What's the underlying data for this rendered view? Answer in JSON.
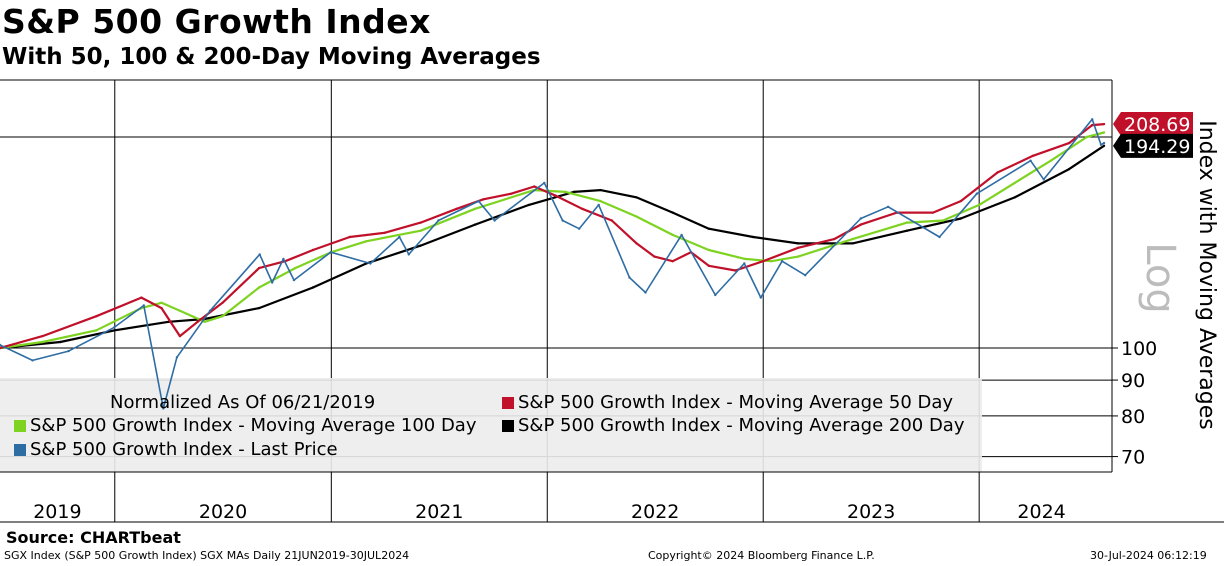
{
  "header": {
    "title": "S&P 500 Growth Index",
    "subtitle": "With 50, 100 & 200-Day Moving Averages"
  },
  "footer": {
    "source": "Source: CHARTbeat",
    "ticker_info": "SGX Index (S&P 500 Growth Index) SGX MAs  Daily 21JUN2019-30JUL2024",
    "copyright": "Copyright© 2024 Bloomberg Finance L.P.",
    "timestamp": "30-Jul-2024 06:12:19"
  },
  "colors": {
    "last_price": "#2e6da4",
    "ma50": "#c0102a",
    "ma100": "#7ed321",
    "ma200": "#000000",
    "legend_bg": "#ececec"
  },
  "chart_data": {
    "type": "line",
    "y_axis_label": "Index with Moving Averages",
    "y_scale": "Log",
    "y_ticks": [
      70,
      80,
      90,
      100
    ],
    "ylim": [
      66,
      215
    ],
    "x_ticks": [
      "2019",
      "2020",
      "2021",
      "2022",
      "2023",
      "2024"
    ],
    "x_range": [
      "2019-06-21",
      "2024-07-30"
    ],
    "grid": true,
    "legend_header": "Normalized As Of 06/21/2019",
    "last_value_labels": [
      {
        "series": "ma50",
        "value": "208.69"
      },
      {
        "series": "ma200",
        "value": "194.29"
      }
    ],
    "series": [
      {
        "name": "S&P 500 Growth Index - Moving Average 50 Day",
        "key": "ma50",
        "points": [
          [
            "2019-06-21",
            100
          ],
          [
            "2019-09-01",
            104
          ],
          [
            "2019-12-01",
            111
          ],
          [
            "2020-02-15",
            118
          ],
          [
            "2020-03-20",
            114
          ],
          [
            "2020-04-20",
            104
          ],
          [
            "2020-05-20",
            109
          ],
          [
            "2020-07-01",
            116
          ],
          [
            "2020-09-01",
            130
          ],
          [
            "2020-10-15",
            133
          ],
          [
            "2020-12-01",
            138
          ],
          [
            "2021-02-01",
            144
          ],
          [
            "2021-04-01",
            146
          ],
          [
            "2021-06-01",
            151
          ],
          [
            "2021-08-01",
            158
          ],
          [
            "2021-09-15",
            163
          ],
          [
            "2021-11-01",
            166
          ],
          [
            "2021-12-10",
            170
          ],
          [
            "2022-01-15",
            165
          ],
          [
            "2022-03-01",
            158
          ],
          [
            "2022-04-20",
            152
          ],
          [
            "2022-06-01",
            141
          ],
          [
            "2022-07-01",
            135
          ],
          [
            "2022-08-01",
            133
          ],
          [
            "2022-09-01",
            137
          ],
          [
            "2022-10-01",
            131
          ],
          [
            "2022-11-15",
            129
          ],
          [
            "2023-01-01",
            133
          ],
          [
            "2023-03-01",
            139
          ],
          [
            "2023-05-01",
            143
          ],
          [
            "2023-06-15",
            150
          ],
          [
            "2023-08-15",
            156
          ],
          [
            "2023-10-15",
            156
          ],
          [
            "2023-12-01",
            162
          ],
          [
            "2024-02-01",
            178
          ],
          [
            "2024-04-01",
            188
          ],
          [
            "2024-06-01",
            196
          ],
          [
            "2024-07-10",
            208
          ],
          [
            "2024-07-30",
            208.69
          ]
        ]
      },
      {
        "name": "S&P 500 Growth Index - Moving Average 100 Day",
        "key": "ma100",
        "points": [
          [
            "2019-06-21",
            100
          ],
          [
            "2019-09-01",
            102
          ],
          [
            "2019-12-01",
            106
          ],
          [
            "2020-02-15",
            114
          ],
          [
            "2020-03-20",
            116
          ],
          [
            "2020-04-20",
            113
          ],
          [
            "2020-06-01",
            109
          ],
          [
            "2020-07-01",
            111
          ],
          [
            "2020-09-01",
            122
          ],
          [
            "2020-11-01",
            130
          ],
          [
            "2021-01-01",
            137
          ],
          [
            "2021-03-01",
            142
          ],
          [
            "2021-06-01",
            147
          ],
          [
            "2021-09-01",
            158
          ],
          [
            "2021-12-10",
            168
          ],
          [
            "2022-02-01",
            167
          ],
          [
            "2022-04-01",
            162
          ],
          [
            "2022-06-01",
            154
          ],
          [
            "2022-08-01",
            145
          ],
          [
            "2022-10-01",
            138
          ],
          [
            "2022-12-01",
            134
          ],
          [
            "2023-01-15",
            133
          ],
          [
            "2023-03-01",
            135
          ],
          [
            "2023-06-01",
            143
          ],
          [
            "2023-09-01",
            151
          ],
          [
            "2023-11-01",
            152
          ],
          [
            "2024-01-01",
            160
          ],
          [
            "2024-03-01",
            172
          ],
          [
            "2024-05-01",
            185
          ],
          [
            "2024-07-01",
            200
          ],
          [
            "2024-07-30",
            203
          ]
        ]
      },
      {
        "name": "S&P 500 Growth Index - Moving Average 200 Day",
        "key": "ma200",
        "points": [
          [
            "2019-06-21",
            100
          ],
          [
            "2019-10-01",
            102
          ],
          [
            "2020-01-01",
            106
          ],
          [
            "2020-04-01",
            109
          ],
          [
            "2020-06-01",
            110
          ],
          [
            "2020-09-01",
            114
          ],
          [
            "2020-12-01",
            122
          ],
          [
            "2021-03-01",
            132
          ],
          [
            "2021-06-01",
            140
          ],
          [
            "2021-09-01",
            150
          ],
          [
            "2021-12-01",
            160
          ],
          [
            "2022-02-15",
            167
          ],
          [
            "2022-04-01",
            168
          ],
          [
            "2022-06-01",
            164
          ],
          [
            "2022-08-01",
            156
          ],
          [
            "2022-10-01",
            148
          ],
          [
            "2022-12-15",
            144
          ],
          [
            "2023-03-01",
            141
          ],
          [
            "2023-06-01",
            141
          ],
          [
            "2023-09-01",
            147
          ],
          [
            "2023-12-01",
            153
          ],
          [
            "2024-03-01",
            164
          ],
          [
            "2024-06-01",
            180
          ],
          [
            "2024-07-30",
            194.29
          ]
        ]
      },
      {
        "name": "S&P 500 Growth Index - Last Price",
        "key": "last_price",
        "points": [
          [
            "2019-06-21",
            101
          ],
          [
            "2019-08-15",
            96
          ],
          [
            "2019-10-15",
            99
          ],
          [
            "2019-12-31",
            107
          ],
          [
            "2020-02-19",
            115
          ],
          [
            "2020-03-23",
            82
          ],
          [
            "2020-04-15",
            97
          ],
          [
            "2020-06-10",
            113
          ],
          [
            "2020-09-02",
            136
          ],
          [
            "2020-09-23",
            124
          ],
          [
            "2020-10-12",
            134
          ],
          [
            "2020-10-30",
            125
          ],
          [
            "2020-12-31",
            137
          ],
          [
            "2021-03-08",
            132
          ],
          [
            "2021-04-26",
            144
          ],
          [
            "2021-05-12",
            136
          ],
          [
            "2021-07-01",
            152
          ],
          [
            "2021-09-07",
            162
          ],
          [
            "2021-10-04",
            152
          ],
          [
            "2021-12-27",
            172
          ],
          [
            "2022-01-27",
            152
          ],
          [
            "2022-02-24",
            148
          ],
          [
            "2022-03-29",
            160
          ],
          [
            "2022-05-20",
            126
          ],
          [
            "2022-06-16",
            120
          ],
          [
            "2022-08-16",
            145
          ],
          [
            "2022-10-12",
            119
          ],
          [
            "2022-11-30",
            132
          ],
          [
            "2022-12-28",
            118
          ],
          [
            "2023-02-02",
            133
          ],
          [
            "2023-03-13",
            127
          ],
          [
            "2023-06-15",
            153
          ],
          [
            "2023-07-31",
            159
          ],
          [
            "2023-10-26",
            144
          ],
          [
            "2023-12-28",
            166
          ],
          [
            "2024-03-28",
            185
          ],
          [
            "2024-04-19",
            174
          ],
          [
            "2024-07-10",
            212
          ],
          [
            "2024-07-25",
            195
          ],
          [
            "2024-07-30",
            196
          ]
        ]
      }
    ]
  }
}
